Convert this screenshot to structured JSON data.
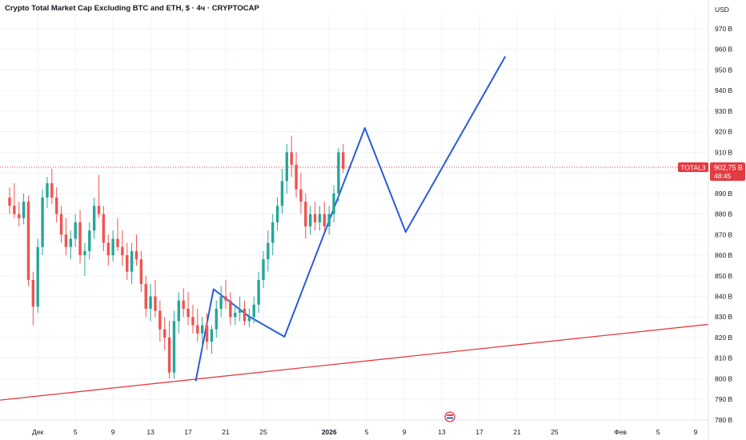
{
  "chart_data": {
    "type": "candlestick",
    "title": "Crypto Total Market Cap Excluding BTC and ETH, $ · 4ч · CRYPTOCAP",
    "currency_label": "USD",
    "y_unit_suffix": " B",
    "ylim": [
      778,
      977
    ],
    "yticks": [
      780,
      790,
      800,
      810,
      820,
      830,
      840,
      850,
      860,
      870,
      880,
      890,
      900,
      910,
      920,
      930,
      940,
      950,
      960,
      970
    ],
    "x_ticks": [
      {
        "label": "Дек",
        "bar": 6,
        "bold": false
      },
      {
        "label": "5",
        "bar": 14,
        "bold": false
      },
      {
        "label": "9",
        "bar": 22,
        "bold": false
      },
      {
        "label": "13",
        "bar": 30,
        "bold": false
      },
      {
        "label": "17",
        "bar": 38,
        "bold": false
      },
      {
        "label": "21",
        "bar": 46,
        "bold": false
      },
      {
        "label": "25",
        "bar": 54,
        "bold": false
      },
      {
        "label": "2026",
        "bar": 68,
        "bold": true
      },
      {
        "label": "5",
        "bar": 76,
        "bold": false
      },
      {
        "label": "9",
        "bar": 84,
        "bold": false
      },
      {
        "label": "13",
        "bar": 92,
        "bold": false
      },
      {
        "label": "17",
        "bar": 100,
        "bold": false
      },
      {
        "label": "21",
        "bar": 108,
        "bold": false
      },
      {
        "label": "25",
        "bar": 116,
        "bold": false
      },
      {
        "label": "Фев",
        "bar": 130,
        "bold": false
      },
      {
        "label": "5",
        "bar": 138,
        "bold": false
      },
      {
        "label": "9",
        "bar": 146,
        "bold": false
      }
    ],
    "candles_per_day": 2,
    "candles": [
      [
        888,
        893,
        880,
        884
      ],
      [
        884,
        895,
        878,
        880
      ],
      [
        880,
        886,
        874,
        878
      ],
      [
        878,
        890,
        875,
        886
      ],
      [
        886,
        889,
        845,
        848
      ],
      [
        848,
        852,
        826,
        835
      ],
      [
        835,
        868,
        832,
        864
      ],
      [
        864,
        892,
        860,
        888
      ],
      [
        888,
        898,
        883,
        895
      ],
      [
        895,
        902,
        885,
        888
      ],
      [
        888,
        893,
        876,
        880
      ],
      [
        880,
        884,
        866,
        870
      ],
      [
        870,
        878,
        860,
        864
      ],
      [
        864,
        872,
        858,
        868
      ],
      [
        868,
        880,
        864,
        876
      ],
      [
        876,
        882,
        856,
        860
      ],
      [
        860,
        866,
        850,
        862
      ],
      [
        862,
        876,
        858,
        872
      ],
      [
        872,
        888,
        868,
        884
      ],
      [
        884,
        899,
        878,
        880
      ],
      [
        880,
        884,
        862,
        866
      ],
      [
        866,
        870,
        855,
        860
      ],
      [
        860,
        872,
        857,
        868
      ],
      [
        868,
        878,
        862,
        864
      ],
      [
        864,
        872,
        855,
        860
      ],
      [
        860,
        866,
        848,
        852
      ],
      [
        852,
        866,
        846,
        862
      ],
      [
        862,
        870,
        855,
        858
      ],
      [
        858,
        862,
        842,
        846
      ],
      [
        846,
        850,
        830,
        834
      ],
      [
        834,
        846,
        828,
        840
      ],
      [
        840,
        848,
        830,
        833
      ],
      [
        833,
        838,
        818,
        824
      ],
      [
        824,
        830,
        814,
        820
      ],
      [
        820,
        828,
        800,
        803
      ],
      [
        803,
        833,
        800,
        828
      ],
      [
        828,
        842,
        822,
        838
      ],
      [
        838,
        844,
        830,
        834
      ],
      [
        834,
        842,
        826,
        830
      ],
      [
        830,
        836,
        822,
        826
      ],
      [
        826,
        834,
        818,
        822
      ],
      [
        822,
        830,
        815,
        826
      ],
      [
        826,
        832,
        814,
        818
      ],
      [
        818,
        826,
        812,
        824
      ],
      [
        824,
        838,
        820,
        834
      ],
      [
        834,
        845,
        830,
        840
      ],
      [
        840,
        848,
        834,
        838
      ],
      [
        838,
        842,
        826,
        830
      ],
      [
        830,
        836,
        826,
        832
      ],
      [
        832,
        840,
        828,
        834
      ],
      [
        834,
        838,
        826,
        828
      ],
      [
        828,
        834,
        825,
        830
      ],
      [
        830,
        840,
        827,
        836
      ],
      [
        836,
        852,
        832,
        848
      ],
      [
        848,
        862,
        844,
        858
      ],
      [
        858,
        872,
        852,
        866
      ],
      [
        866,
        880,
        860,
        876
      ],
      [
        876,
        888,
        872,
        884
      ],
      [
        884,
        902,
        880,
        896
      ],
      [
        896,
        914,
        890,
        910
      ],
      [
        910,
        918,
        898,
        904
      ],
      [
        904,
        910,
        888,
        892
      ],
      [
        892,
        900,
        880,
        886
      ],
      [
        886,
        890,
        868,
        874
      ],
      [
        874,
        884,
        870,
        880
      ],
      [
        880,
        886,
        872,
        876
      ],
      [
        876,
        884,
        872,
        880
      ],
      [
        880,
        886,
        872,
        874
      ],
      [
        874,
        884,
        870,
        880
      ],
      [
        880,
        894,
        876,
        890
      ],
      [
        890,
        912,
        886,
        910
      ],
      [
        910,
        914,
        900,
        902
      ]
    ],
    "start_bar": 0,
    "current_price": {
      "symbol": "TOTAL3",
      "value": "902,75 B",
      "timer": "48:45"
    },
    "drawings": [
      {
        "name": "support-trendline",
        "color": "#e23b40",
        "points": [
          [
            -2.5,
            789.5
          ],
          [
            188,
            836
          ]
        ]
      },
      {
        "name": "projection-zigzag",
        "color": "#2a5bd7",
        "points": [
          [
            39.6,
            798.8
          ],
          [
            43.4,
            843.5
          ],
          [
            50.9,
            830.3
          ],
          [
            58.5,
            820.4
          ],
          [
            75.6,
            921.8
          ],
          [
            84.3,
            871.3
          ],
          [
            105.5,
            956.6
          ]
        ]
      }
    ],
    "colors": {
      "up": "#26a69a",
      "down": "#ef5350",
      "grid": "#f0f3fa",
      "price_line": "#e23b40"
    }
  }
}
